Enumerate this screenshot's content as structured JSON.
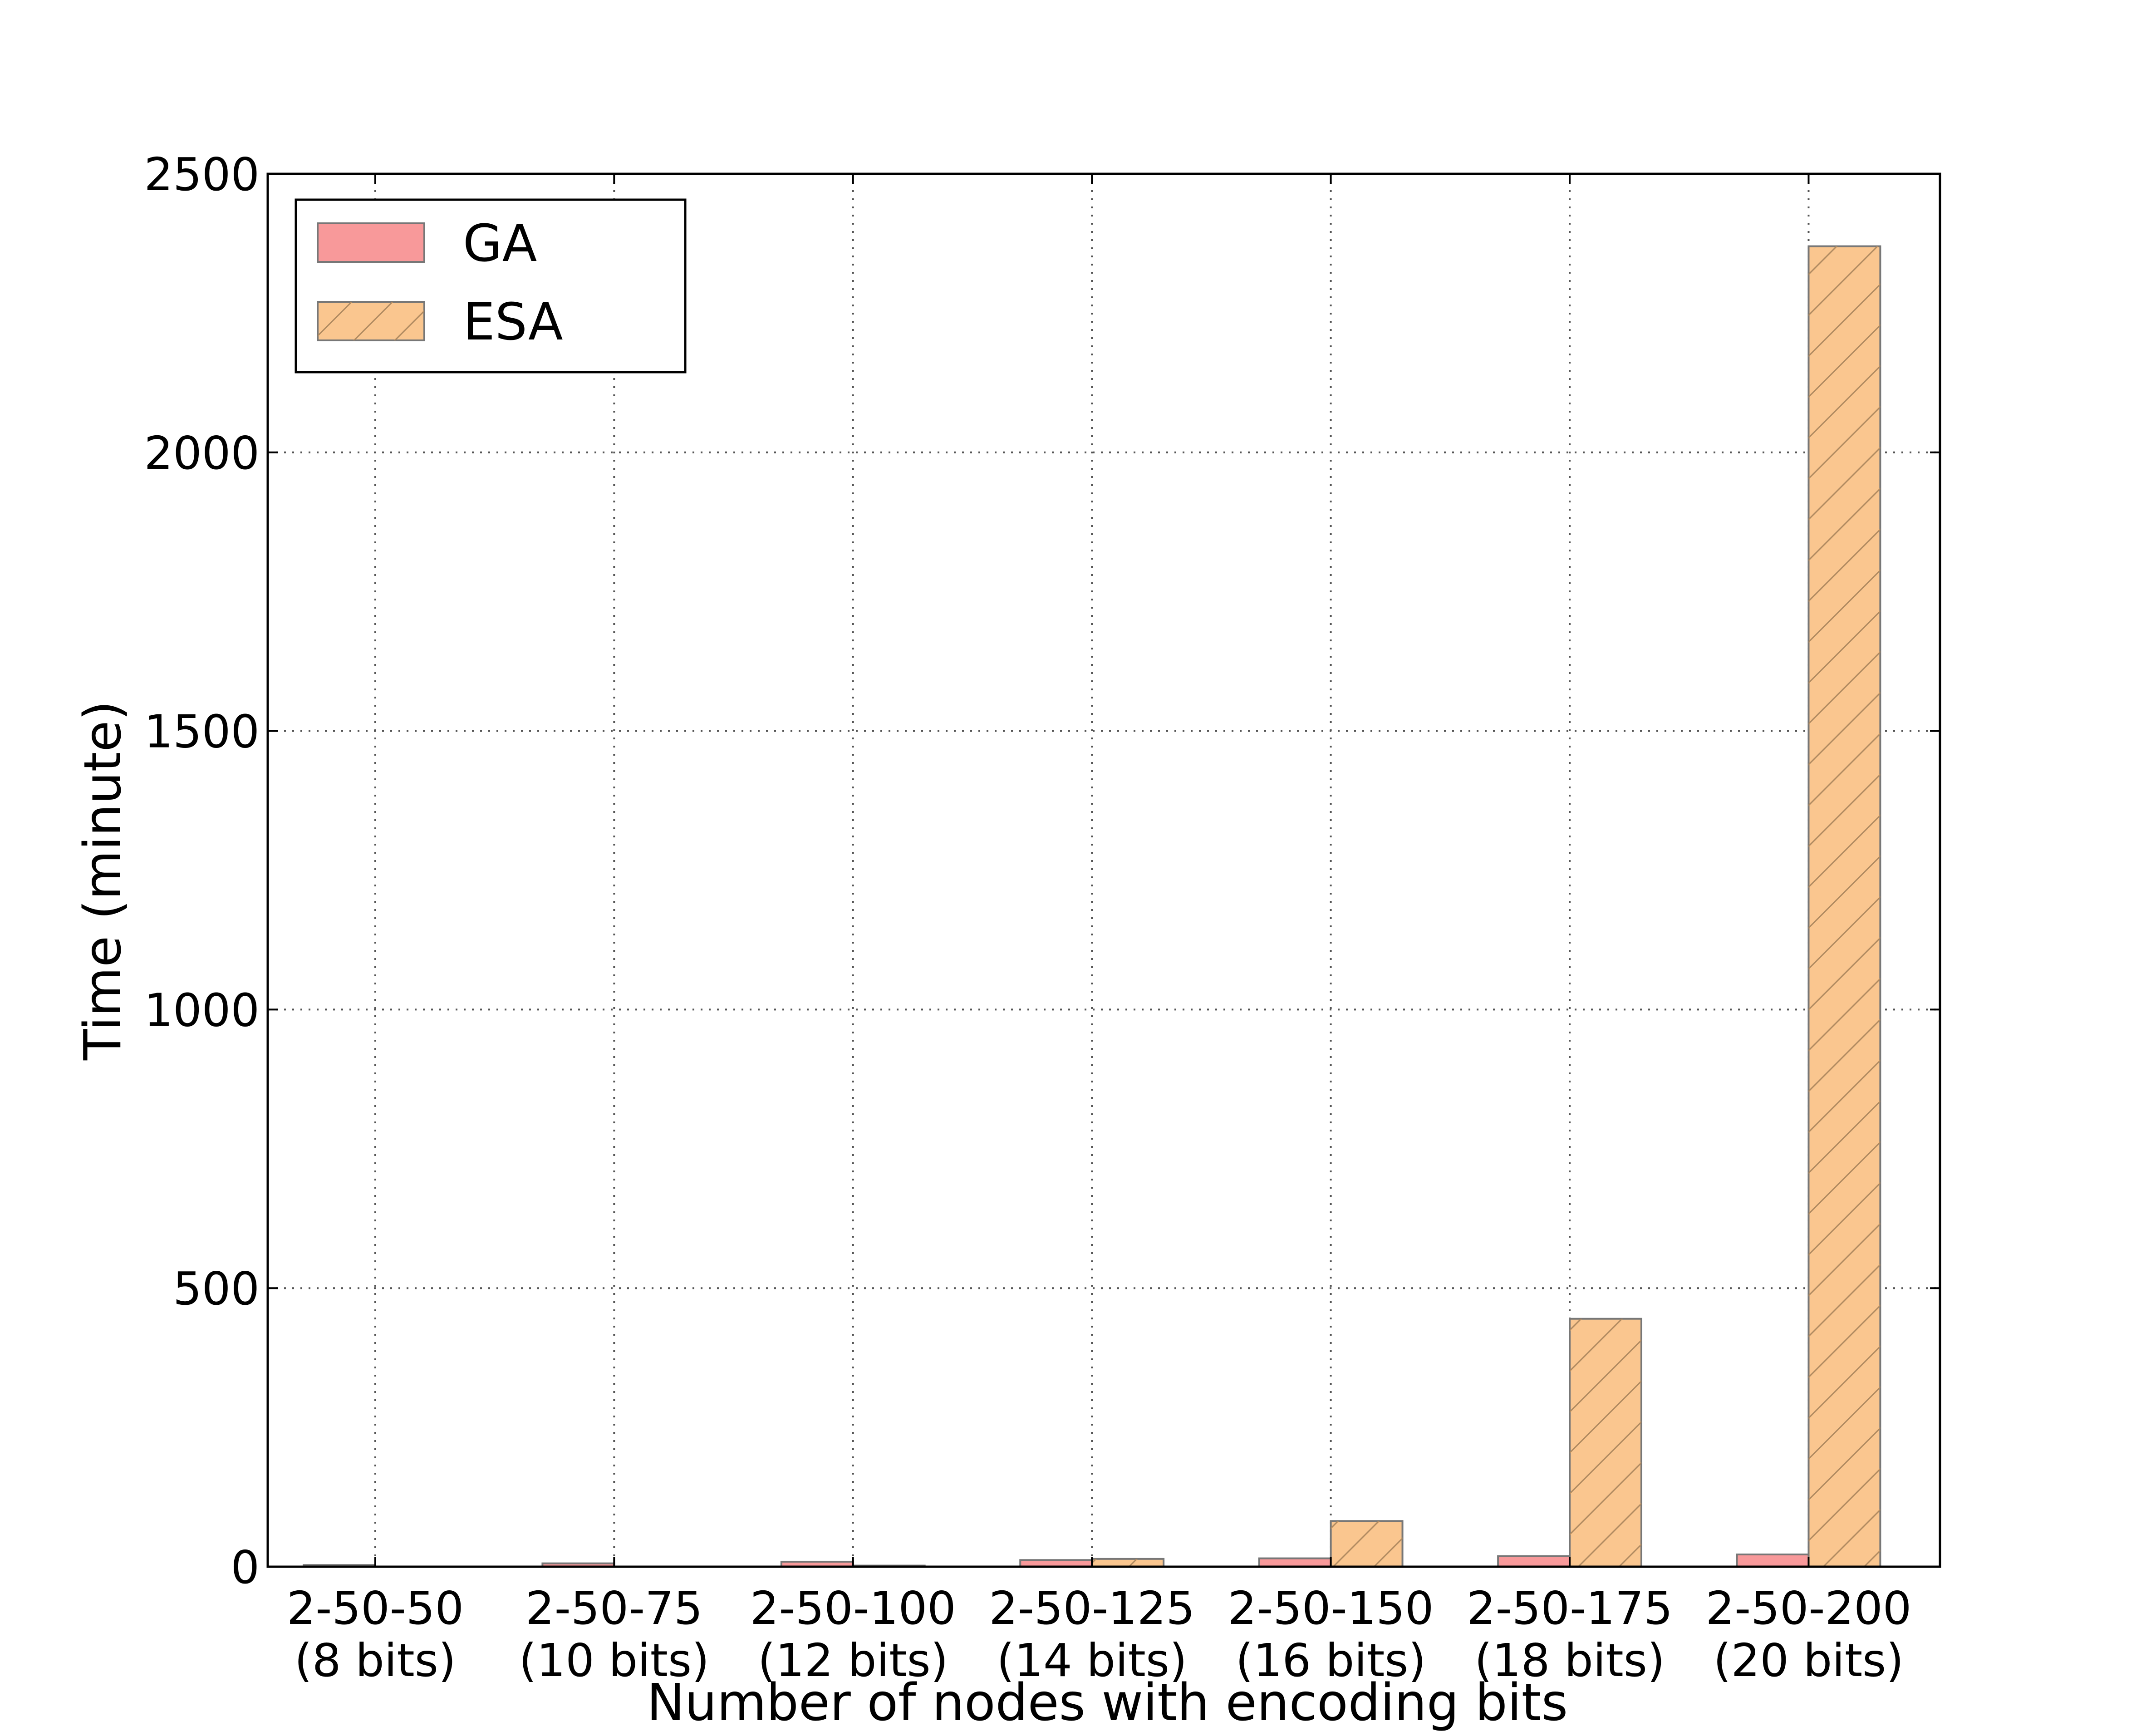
{
  "chart_data": {
    "type": "bar",
    "title": "",
    "xlabel": "Number of nodes with encoding bits",
    "ylabel": "Time (minute)",
    "categories": [
      [
        "2-50-50",
        "(8 bits)"
      ],
      [
        "2-50-75",
        "(10 bits)"
      ],
      [
        "2-50-100",
        "(12 bits)"
      ],
      [
        "2-50-125",
        "(14 bits)"
      ],
      [
        "2-50-150",
        "(16 bits)"
      ],
      [
        "2-50-175",
        "(18 bits)"
      ],
      [
        "2-50-200",
        "(20 bits)"
      ]
    ],
    "series": [
      {
        "name": "GA",
        "values": [
          3,
          6,
          9,
          12,
          15,
          19,
          22
        ],
        "color": "#f8999a",
        "hatch": false
      },
      {
        "name": "ESA",
        "values": [
          0,
          0,
          2,
          14,
          82,
          445,
          2370
        ],
        "color": "#fac68f",
        "hatch": true
      }
    ],
    "ylim": [
      0,
      2500
    ],
    "yticks": [
      0,
      500,
      1000,
      1500,
      2000,
      2500
    ],
    "grid": true,
    "legend_position": "top-left"
  }
}
